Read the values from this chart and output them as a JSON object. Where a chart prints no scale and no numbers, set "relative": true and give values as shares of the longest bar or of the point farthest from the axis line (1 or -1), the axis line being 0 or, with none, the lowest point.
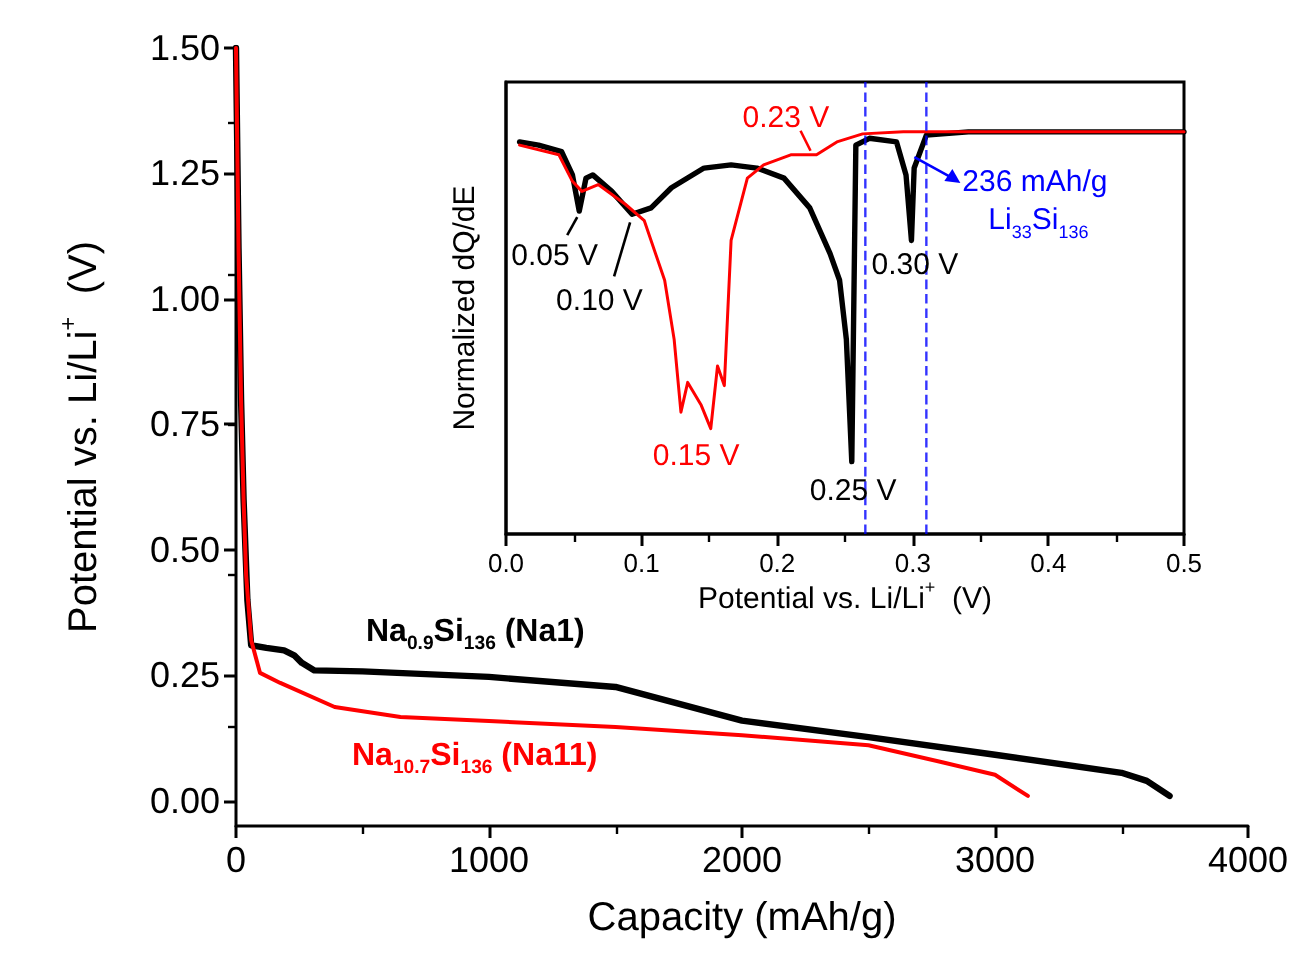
{
  "chart_data": [
    {
      "type": "line",
      "xlabel": "Capacity (mAh/g)",
      "ylabel": "Potential vs. Li/Li$^{+}$  (V)",
      "xlim": [
        0,
        4000
      ],
      "xticks": [
        0,
        1000,
        2000,
        3000,
        4000
      ],
      "ylim": [
        -0.05,
        1.5
      ],
      "yticks": [
        {
          "value": 0,
          "label": "0.00"
        },
        0.25,
        {
          "value": 0.5,
          "label": "0.50"
        },
        0.75,
        {
          "value": 1,
          "label": "1.00"
        },
        1.25,
        {
          "value": 1.5,
          "label": "1.50"
        }
      ],
      "grid": false,
      "legend": false,
      "marker": "none",
      "line_style": "solid",
      "series": [
        {
          "name": "Na$_{0.9}$Si$_{136}$ (Na1)",
          "color": "#000000",
          "x": [
            0,
            10,
            20,
            30,
            45,
            60,
            120,
            190,
            230,
            260,
            310,
            500,
            1000,
            1500,
            2000,
            2500,
            3000,
            3500,
            3600,
            3690
          ],
          "values": [
            1.5,
            1.1,
            0.8,
            0.6,
            0.4,
            0.31,
            0.305,
            0.3,
            0.29,
            0.275,
            0.26,
            0.258,
            0.247,
            0.227,
            0.16,
            0.127,
            0.092,
            0.056,
            0.04,
            0.01
          ]
        },
        {
          "name": "Na$_{10.7}$Si$_{136}$ (Na11)",
          "color": "#ff0000",
          "x": [
            0,
            10,
            20,
            30,
            40,
            60,
            95,
            175,
            390,
            650,
            1000,
            1500,
            2000,
            2500,
            2800,
            3000,
            3130
          ],
          "values": [
            1.5,
            1.1,
            0.8,
            0.6,
            0.45,
            0.32,
            0.255,
            0.235,
            0.187,
            0.167,
            0.159,
            0.147,
            0.131,
            0.111,
            0.076,
            0.052,
            0.01
          ]
        }
      ]
    },
    {
      "type": "line",
      "xlabel": "Potential vs. Li/Li$^{+}$  (V)",
      "ylabel": "Normalized dQ/dE",
      "relative": true,
      "xlim": [
        0,
        0.5
      ],
      "xticks": [
        {
          "value": 0,
          "label": "0.0"
        },
        0.1,
        0.2,
        0.3,
        0.4,
        0.5
      ],
      "grid": false,
      "legend": false,
      "marker": "none",
      "line_style": "solid",
      "series": [
        {
          "color": "#000000",
          "x": [
            0.01,
            0.024,
            0.041,
            0.049,
            0.054,
            0.059,
            0.064,
            0.078,
            0.093,
            0.107,
            0.122,
            0.146,
            0.166,
            0.185,
            0.205,
            0.224,
            0.239,
            0.246,
            0.251,
            0.255,
            0.258,
            0.268,
            0.288,
            0.295,
            0.299,
            0.301,
            0.31,
            0.341,
            0.39,
            0.5
          ],
          "values": [
            0.975,
            0.967,
            0.951,
            0.893,
            0.803,
            0.885,
            0.893,
            0.852,
            0.795,
            0.811,
            0.861,
            0.91,
            0.918,
            0.91,
            0.885,
            0.811,
            0.697,
            0.631,
            0.484,
            0.18,
            0.967,
            0.984,
            0.975,
            0.893,
            0.73,
            0.91,
            0.992,
            1,
            1,
            1
          ]
        },
        {
          "color": "#ff0000",
          "x": [
            0.01,
            0.039,
            0.049,
            0.056,
            0.068,
            0.088,
            0.102,
            0.117,
            0.124,
            0.129,
            0.134,
            0.144,
            0.151,
            0.156,
            0.161,
            0.166,
            0.178,
            0.19,
            0.21,
            0.229,
            0.244,
            0.263,
            0.293,
            0.5
          ],
          "values": [
            0.967,
            0.943,
            0.877,
            0.852,
            0.869,
            0.82,
            0.779,
            0.631,
            0.484,
            0.303,
            0.377,
            0.32,
            0.262,
            0.418,
            0.369,
            0.73,
            0.885,
            0.918,
            0.943,
            0.943,
            0.975,
            0.995,
            1,
            1
          ]
        }
      ],
      "ref_lines": [
        {
          "axis": "x",
          "value": 0.265,
          "color": "#0000ff",
          "line_style": "dashed"
        },
        {
          "axis": "x",
          "value": 0.31,
          "color": "#0000ff",
          "line_style": "dashed"
        }
      ],
      "annotations": [
        {
          "text": "0.05 V",
          "x": 0.054,
          "y": 0.803
        },
        {
          "text": "0.10 V",
          "x": 0.093,
          "y": 0.795
        },
        {
          "text": "0.15 V",
          "x": 0.151,
          "y": 0.262
        },
        {
          "text": "0.25 V",
          "x": 0.255,
          "y": 0.18
        },
        {
          "text": "0.23 V",
          "x": 0.229,
          "y": 0.943
        },
        {
          "text": "0.30 V",
          "x": 0.299,
          "y": 0.73
        },
        {
          "text": "236 mAh/g\nLi$_{33}$Si$_{136}$",
          "x": 0.31,
          "y": 0.992
        }
      ]
    }
  ]
}
